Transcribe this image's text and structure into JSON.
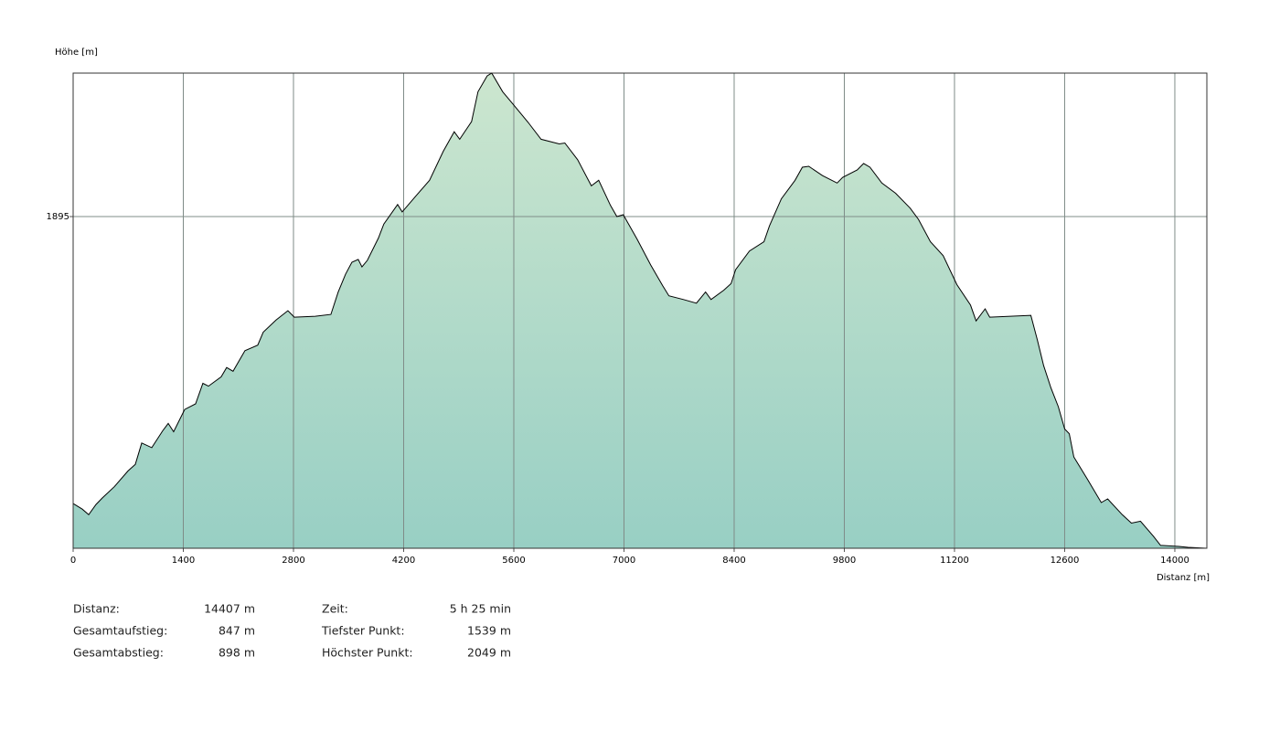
{
  "chart_data": {
    "type": "area",
    "y_label": "Höhe [m]",
    "x_label": "Distanz [m]",
    "x": [
      0,
      116,
      197,
      290,
      372,
      523,
      697,
      790,
      871,
      999,
      1138,
      1208,
      1277,
      1417,
      1556,
      1649,
      1719,
      1881,
      1951,
      2032,
      2183,
      2346,
      2416,
      2578,
      2729,
      2810,
      3077,
      3275,
      3368,
      3461,
      3542,
      3623,
      3670,
      3739,
      3879,
      3948,
      4123,
      4181,
      4355,
      4529,
      4703,
      4843,
      4912,
      5063,
      5145,
      5261,
      5319,
      5458,
      5597,
      5783,
      5946,
      6178,
      6248,
      6411,
      6585,
      6678,
      6828,
      6910,
      6991,
      7165,
      7339,
      7490,
      7571,
      7757,
      7920,
      8036,
      8106,
      8268,
      8361,
      8419,
      8594,
      8779,
      8849,
      9000,
      9174,
      9267,
      9348,
      9523,
      9708,
      9778,
      9964,
      10045,
      10126,
      10277,
      10452,
      10637,
      10742,
      10893,
      11056,
      11230,
      11404,
      11474,
      11590,
      11648,
      12171,
      12252,
      12333,
      12426,
      12519,
      12600,
      12658,
      12716,
      12890,
      13065,
      13146,
      13332,
      13448,
      13564,
      13726,
      13819,
      14051,
      14168,
      14407
    ],
    "values": [
      1587,
      1581,
      1575,
      1586,
      1593,
      1605,
      1622,
      1629,
      1652,
      1647,
      1665,
      1673,
      1664,
      1688,
      1694,
      1716,
      1713,
      1723,
      1733,
      1729,
      1751,
      1757,
      1771,
      1784,
      1794,
      1787,
      1788,
      1790,
      1814,
      1833,
      1846,
      1849,
      1841,
      1848,
      1872,
      1887,
      1908,
      1900,
      1917,
      1934,
      1965,
      1986,
      1978,
      1997,
      2029,
      2046,
      2049,
      2029,
      2015,
      1996,
      1978,
      1973,
      1974,
      1956,
      1928,
      1934,
      1907,
      1895,
      1897,
      1871,
      1843,
      1821,
      1810,
      1806,
      1802,
      1814,
      1806,
      1816,
      1823,
      1838,
      1858,
      1868,
      1885,
      1914,
      1934,
      1948,
      1949,
      1939,
      1931,
      1937,
      1945,
      1952,
      1948,
      1931,
      1920,
      1904,
      1892,
      1868,
      1853,
      1822,
      1800,
      1783,
      1796,
      1787,
      1789,
      1763,
      1735,
      1711,
      1691,
      1667,
      1662,
      1637,
      1613,
      1588,
      1592,
      1575,
      1566,
      1568,
      1552,
      1542,
      1541,
      1540,
      1539
    ],
    "color": "#000000",
    "fill_colors": [
      "#cce6cf",
      "#98cfc4"
    ],
    "xlim": [
      0,
      14407
    ],
    "xticks": [
      0,
      1400,
      2800,
      4200,
      5600,
      7000,
      8400,
      9800,
      11200,
      12600,
      14000
    ],
    "ylim": [
      1539,
      2049
    ],
    "yticks": [
      1895
    ],
    "grid": true
  },
  "stats": [
    {
      "label": "Distanz:",
      "value": "14407 m"
    },
    {
      "label": "Gesamtaufstieg:",
      "value": "847 m"
    },
    {
      "label": "Gesamtabstieg:",
      "value": "898 m"
    },
    {
      "label": "Zeit:",
      "value": "5 h 25 min"
    },
    {
      "label": "Tiefster Punkt:",
      "value": "1539 m"
    },
    {
      "label": "Höchster Punkt:",
      "value": "2049 m"
    }
  ]
}
